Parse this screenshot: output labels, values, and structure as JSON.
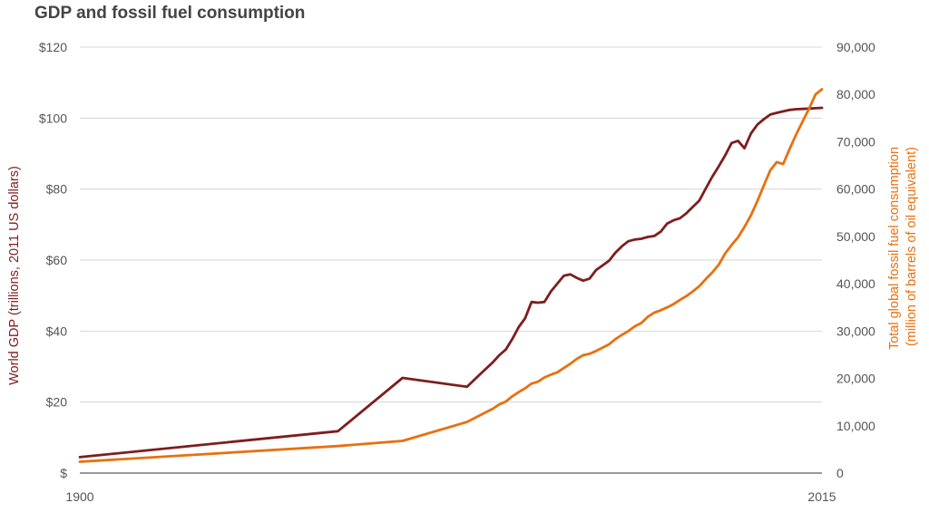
{
  "colors": {
    "gdp": "#7f1d1d",
    "fossil": "#e8700f",
    "grid": "#d6d6d6",
    "text": "#555555"
  },
  "chart_data": {
    "type": "line",
    "title": "GDP and fossil fuel consumption",
    "xlabel": "",
    "x_tick_labels": [
      "1900",
      "2015"
    ],
    "xlim": [
      1900,
      2015
    ],
    "y_left": {
      "label": "World GDP (trillions, 2011 US dollars)",
      "lim": [
        0,
        120
      ],
      "ticks": [
        {
          "value": 0,
          "label": "$"
        },
        {
          "value": 20,
          "label": "$20"
        },
        {
          "value": 40,
          "label": "$40"
        },
        {
          "value": 60,
          "label": "$60"
        },
        {
          "value": 80,
          "label": "$80"
        },
        {
          "value": 100,
          "label": "$100"
        },
        {
          "value": 120,
          "label": "$120"
        }
      ]
    },
    "y_right": {
      "label_lines": [
        "Total global fossil fuel consumption",
        "(million of barrels of oil equivalent)"
      ],
      "lim": [
        0,
        90000
      ],
      "ticks": [
        {
          "value": 0,
          "label": "0"
        },
        {
          "value": 10000,
          "label": "10,000"
        },
        {
          "value": 20000,
          "label": "20,000"
        },
        {
          "value": 30000,
          "label": "30,000"
        },
        {
          "value": 40000,
          "label": "40,000"
        },
        {
          "value": 50000,
          "label": "50,000"
        },
        {
          "value": 60000,
          "label": "60,000"
        },
        {
          "value": 70000,
          "label": "70,000"
        },
        {
          "value": 80000,
          "label": "80,000"
        },
        {
          "value": 90000,
          "label": "90,000"
        }
      ]
    },
    "grid": true,
    "legend": "none",
    "series": [
      {
        "axis": "left",
        "color": "#7f1d1d",
        "x": [
          1900,
          1940,
          1950,
          1960,
          1962,
          1964,
          1965,
          1966,
          1967,
          1968,
          1969,
          1970,
          1971,
          1972,
          1973,
          1974,
          1975,
          1976,
          1977,
          1978,
          1979,
          1980,
          1981,
          1982,
          1983,
          1984,
          1985,
          1986,
          1987,
          1988,
          1989,
          1990,
          1991,
          1992,
          1993,
          1994,
          1995,
          1996,
          1997,
          1998,
          1999,
          2000,
          2001,
          2002,
          2003,
          2004,
          2005,
          2006,
          2007,
          2008,
          2009,
          2010,
          2011,
          2012,
          2013,
          2014,
          2015
        ],
        "values": [
          4.5,
          11.8,
          26.8,
          24.3,
          27.8,
          31.2,
          33.2,
          34.8,
          37.7,
          41.1,
          43.6,
          48.2,
          48.0,
          48.2,
          51.2,
          53.4,
          55.6,
          56.0,
          55.0,
          54.2,
          54.8,
          57.2,
          58.5,
          59.8,
          62.1,
          63.9,
          65.3,
          65.8,
          66.0,
          66.5,
          66.8,
          68.0,
          70.3,
          71.2,
          71.8,
          73.2,
          75.0,
          76.8,
          80.2,
          83.5,
          86.4,
          89.5,
          93.0,
          93.6,
          91.5,
          95.7,
          98.2,
          99.7,
          101.0,
          101.5,
          101.9,
          102.3,
          102.5,
          102.6,
          102.7,
          102.8,
          102.9
        ]
      },
      {
        "axis": "right",
        "color": "#e8700f",
        "x": [
          1900,
          1940,
          1950,
          1960,
          1962,
          1964,
          1965,
          1966,
          1967,
          1968,
          1969,
          1970,
          1971,
          1972,
          1973,
          1974,
          1975,
          1976,
          1977,
          1978,
          1979,
          1980,
          1981,
          1982,
          1983,
          1984,
          1985,
          1986,
          1987,
          1988,
          1989,
          1990,
          1991,
          1992,
          1993,
          1994,
          1995,
          1996,
          1997,
          1998,
          1999,
          2000,
          2001,
          2002,
          2003,
          2004,
          2005,
          2006,
          2007,
          2008,
          2009,
          2010,
          2011,
          2012,
          2013,
          2014,
          2015
        ],
        "values": [
          2400,
          5700,
          6800,
          10800,
          12200,
          13600,
          14500,
          15100,
          16200,
          17100,
          17900,
          18900,
          19300,
          20200,
          20800,
          21300,
          22200,
          23100,
          24100,
          24900,
          25200,
          25800,
          26500,
          27200,
          28300,
          29200,
          30000,
          31000,
          31700,
          33000,
          33900,
          34400,
          35000,
          35700,
          36600,
          37400,
          38400,
          39500,
          41000,
          42400,
          44000,
          46400,
          48200,
          49800,
          52000,
          54500,
          57500,
          60800,
          64000,
          65700,
          65300,
          68500,
          71500,
          74300,
          77000,
          80000,
          81100
        ]
      }
    ]
  }
}
